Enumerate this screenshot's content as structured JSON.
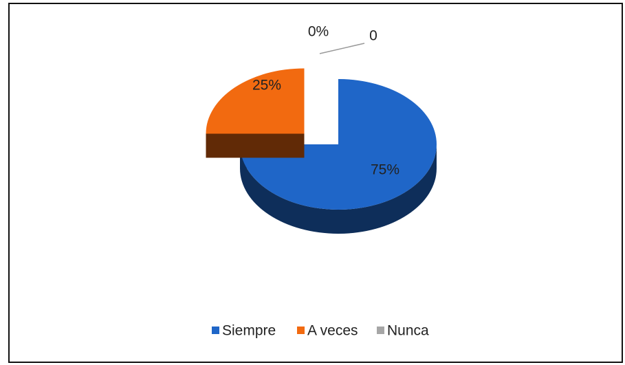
{
  "chart_data": {
    "type": "pie",
    "categories": [
      "Siempre",
      "A veces",
      "Nunca"
    ],
    "values": [
      75,
      25,
      0
    ],
    "value_labels": [
      "75%",
      "25%",
      "0%"
    ],
    "colors": [
      "#1f66c8",
      "#f26a10",
      "#a6a6a6"
    ],
    "annotation": "0",
    "legend": "bottom"
  }
}
